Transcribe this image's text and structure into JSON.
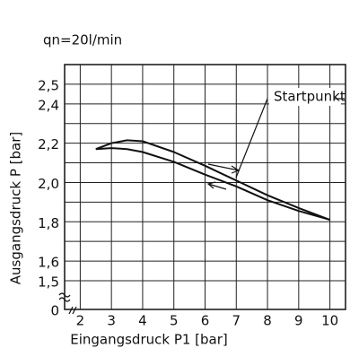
{
  "chart_data": {
    "type": "line",
    "title": "qn=20l/min",
    "x_label": "Eingangsdruck P1 [bar]",
    "y_label": "Ausgangsdruck P [bar]",
    "annotation": "Startpunkt",
    "x": [
      2.5,
      3,
      3.5,
      4,
      5,
      6,
      7,
      8,
      9,
      10
    ],
    "series": [
      {
        "color": "#111111",
        "values": [
          2.17,
          2.2,
          2.215,
          2.21,
          2.155,
          2.085,
          2.01,
          1.935,
          1.87,
          1.81
        ]
      },
      {
        "color": "#111111",
        "values": [
          2.17,
          2.175,
          2.17,
          2.155,
          2.105,
          2.04,
          1.98,
          1.91,
          1.855,
          1.81
        ]
      }
    ],
    "xlim": [
      1.5,
      10.5
    ],
    "xticks": [
      2,
      3,
      4,
      5,
      6,
      7,
      8,
      9,
      10
    ],
    "ylim": [
      0,
      2.6
    ],
    "y_axis_break": [
      0,
      1.5
    ],
    "yticks": [
      0,
      {
        "value": 1.5,
        "label": "1,5"
      },
      {
        "value": 1.6,
        "label": "1,6"
      },
      {
        "value": 1.8,
        "label": "1,8"
      },
      {
        "value": 2.0,
        "label": "2,0"
      },
      {
        "value": 2.2,
        "label": "2,2"
      },
      {
        "value": 2.4,
        "label": "2,4"
      },
      {
        "value": 2.5,
        "label": "2,5"
      }
    ],
    "y_minor_gridlines": [
      1.7,
      1.9,
      2.1,
      2.3
    ],
    "grid": true
  }
}
